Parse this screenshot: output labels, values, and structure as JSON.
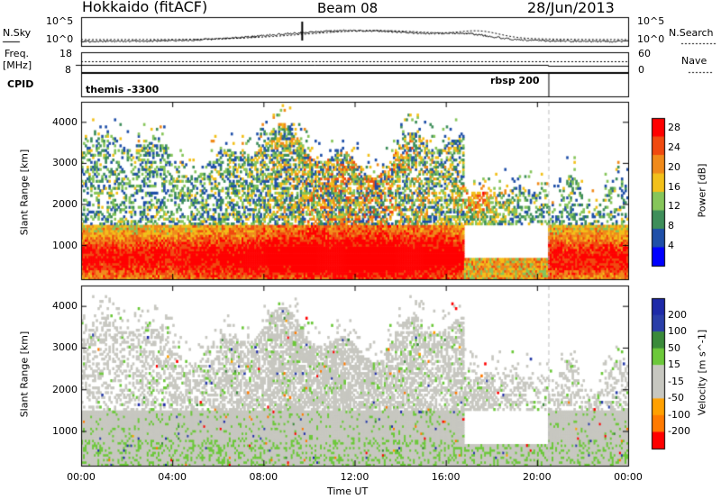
{
  "header": {
    "title_left": "Hokkaido (fitACF)",
    "title_center": "Beam 08",
    "title_right": "28/Jun/2013"
  },
  "side_labels": {
    "nsky": "N.Sky",
    "freq_line1": "Freq.",
    "freq_line2": "[MHz]",
    "cpid": "CPID",
    "nsearch": "N.Search",
    "nave": "Nave"
  },
  "top_axes": {
    "noise_left_ticks": [
      "10^5",
      "10^0"
    ],
    "noise_right_ticks": [
      "10^5",
      "10^0"
    ],
    "freq_left_ticks": [
      "18",
      "8"
    ],
    "nave_right_ticks": [
      "60",
      "0"
    ]
  },
  "cpid_labels": [
    {
      "text": "themis -3300",
      "t": 0.0
    },
    {
      "text": "rbsp 200",
      "t": 20.5
    }
  ],
  "colors": {
    "power": [
      "#0000ff",
      "#1f4fa8",
      "#3e8e5a",
      "#86c55a",
      "#f2c01a",
      "#f08a1a",
      "#f04a10",
      "#ff0000"
    ],
    "velocity": [
      "#ff0000",
      "#ff7a00",
      "#ffa000",
      "#c7c7c0",
      "#c7c7c0",
      "#6cc83a",
      "#3a8a3a",
      "#2a3ea8",
      "#1e2aa8"
    ]
  },
  "chart_data": [
    {
      "type": "heatmap",
      "name": "power",
      "ylabel": "Slant Range [km]",
      "y_ticks": [
        1000,
        2000,
        3000,
        4000
      ],
      "ylim": [
        180,
        4500
      ],
      "colorbar_label": "Power [dB]",
      "colorbar_ticks": [
        4,
        8,
        12,
        16,
        20,
        24,
        28
      ],
      "clim": [
        0,
        30
      ]
    },
    {
      "type": "heatmap",
      "name": "velocity",
      "ylabel": "Slant Range [km]",
      "xlabel": "Time UT",
      "x_ticks": [
        "00:00",
        "04:00",
        "08:00",
        "12:00",
        "16:00",
        "20:00",
        "00:00"
      ],
      "y_ticks": [
        1000,
        2000,
        3000,
        4000
      ],
      "ylim": [
        180,
        4500
      ],
      "colorbar_label": "Velocity [m s^-1]",
      "colorbar_ticks": [
        "200",
        "100",
        "50",
        "15",
        "-15",
        "-50",
        "-100",
        "-200"
      ],
      "clim": [
        -250,
        250
      ]
    }
  ]
}
